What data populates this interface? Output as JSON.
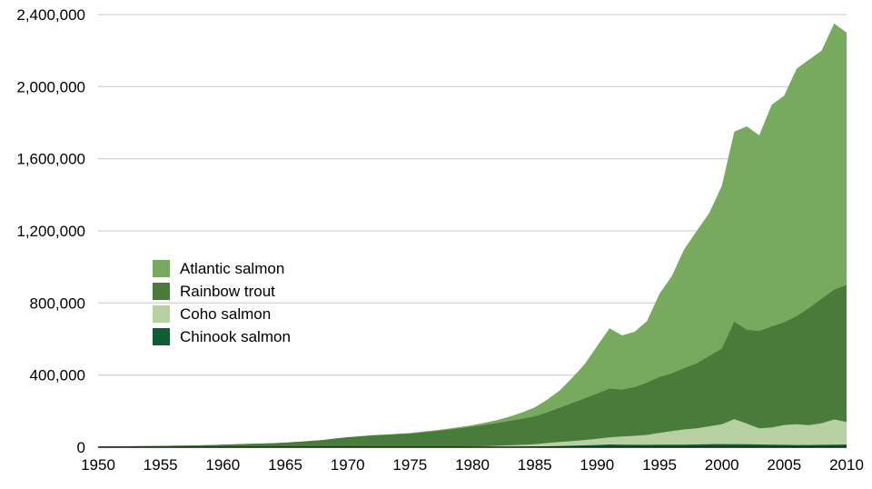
{
  "chart_data": {
    "type": "area",
    "stacked": true,
    "title": "",
    "xlabel": "",
    "ylabel": "",
    "grid": "horizontal",
    "xlim": [
      1950,
      2010
    ],
    "ylim": [
      0,
      2400000
    ],
    "x": [
      1950,
      1951,
      1952,
      1953,
      1954,
      1955,
      1956,
      1957,
      1958,
      1959,
      1960,
      1961,
      1962,
      1963,
      1964,
      1965,
      1966,
      1967,
      1968,
      1969,
      1970,
      1971,
      1972,
      1973,
      1974,
      1975,
      1976,
      1977,
      1978,
      1979,
      1980,
      1981,
      1982,
      1983,
      1984,
      1985,
      1986,
      1987,
      1988,
      1989,
      1990,
      1991,
      1992,
      1993,
      1994,
      1995,
      1996,
      1997,
      1998,
      1999,
      2000,
      2001,
      2002,
      2003,
      2004,
      2005,
      2006,
      2007,
      2008,
      2009,
      2010
    ],
    "series": [
      {
        "name": "Chinook salmon",
        "color": "#0f5c35",
        "values": [
          0,
          0,
          0,
          0,
          0,
          0,
          0,
          0,
          0,
          0,
          0,
          0,
          0,
          0,
          0,
          0,
          0,
          0,
          0,
          0,
          0,
          0,
          0,
          0,
          0,
          0,
          0,
          0,
          300,
          500,
          1000,
          1500,
          2000,
          2500,
          3000,
          4000,
          5000,
          6500,
          8000,
          10000,
          12000,
          15000,
          14000,
          13000,
          13000,
          14000,
          14000,
          14000,
          15000,
          16000,
          17000,
          16000,
          16000,
          15000,
          14000,
          13000,
          12000,
          12000,
          13000,
          14000,
          15000
        ]
      },
      {
        "name": "Coho salmon",
        "color": "#b7d0a1",
        "values": [
          0,
          0,
          0,
          0,
          0,
          0,
          0,
          0,
          0,
          0,
          0,
          0,
          0,
          0,
          0,
          0,
          0,
          0,
          0,
          0,
          0,
          0,
          0,
          0,
          0,
          0,
          200,
          500,
          1000,
          2000,
          3000,
          4000,
          6000,
          8000,
          10000,
          12000,
          18000,
          22000,
          26000,
          30000,
          35000,
          40000,
          45000,
          50000,
          55000,
          65000,
          75000,
          85000,
          90000,
          100000,
          110000,
          140000,
          115000,
          90000,
          95000,
          110000,
          115000,
          110000,
          120000,
          140000,
          125000
        ]
      },
      {
        "name": "Rainbow trout",
        "color": "#497c3b",
        "values": [
          4000,
          4500,
          5000,
          5500,
          6000,
          7000,
          8000,
          9000,
          10000,
          12000,
          14000,
          16000,
          18000,
          20000,
          22000,
          25000,
          30000,
          35000,
          40000,
          48000,
          55000,
          60000,
          65000,
          68000,
          72000,
          75000,
          82000,
          88000,
          95000,
          102000,
          110000,
          118000,
          126000,
          135000,
          145000,
          155000,
          170000,
          190000,
          210000,
          230000,
          250000,
          270000,
          260000,
          270000,
          290000,
          310000,
          320000,
          340000,
          360000,
          390000,
          420000,
          540000,
          520000,
          540000,
          560000,
          570000,
          600000,
          650000,
          690000,
          720000,
          760000
        ]
      },
      {
        "name": "Atlantic salmon",
        "color": "#77a95f",
        "values": [
          0,
          0,
          0,
          0,
          0,
          0,
          0,
          0,
          0,
          0,
          0,
          0,
          0,
          0,
          0,
          0,
          0,
          0,
          0,
          0,
          500,
          1000,
          1500,
          2000,
          2500,
          3000,
          4000,
          5000,
          6000,
          7000,
          8000,
          12000,
          17000,
          24000,
          35000,
          50000,
          70000,
          95000,
          140000,
          190000,
          263000,
          335000,
          301000,
          307000,
          342000,
          461000,
          541000,
          661000,
          735000,
          794000,
          903000,
          1054000,
          1129000,
          1085000,
          1231000,
          1257000,
          1373000,
          1378000,
          1377000,
          1476000,
          1400000
        ]
      }
    ],
    "y_ticks": [
      0,
      400000,
      800000,
      1200000,
      1600000,
      2000000,
      2400000
    ],
    "y_tick_labels": [
      "0",
      "400,000",
      "800,000",
      "1,200,000",
      "1,600,000",
      "2,000,000",
      "2,400,000"
    ],
    "x_ticks": [
      1950,
      1955,
      1960,
      1965,
      1970,
      1975,
      1980,
      1985,
      1990,
      1995,
      2000,
      2005,
      2010
    ],
    "x_tick_labels": [
      "1950",
      "1955",
      "1960",
      "1965",
      "1970",
      "1975",
      "1980",
      "1985",
      "1990",
      "1995",
      "2000",
      "2005",
      "2010"
    ],
    "legend": {
      "position": "inside-left",
      "order": [
        "Atlantic salmon",
        "Rainbow trout",
        "Coho salmon",
        "Chinook salmon"
      ]
    },
    "colors": {
      "gridline": "#c9c9c9",
      "axis_line": "#1a1a1a",
      "tick_label": "#000000",
      "background": "#ffffff"
    }
  }
}
